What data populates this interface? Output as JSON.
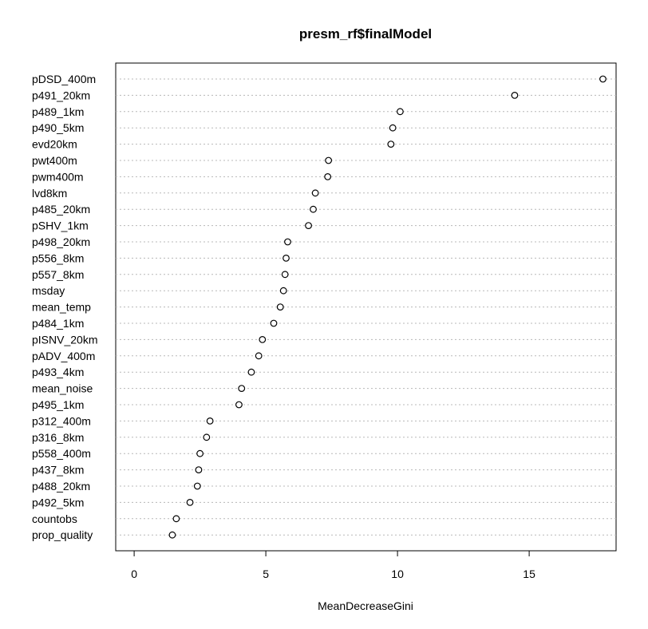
{
  "chart_data": {
    "type": "scatter",
    "title": "presm_rf$finalModel",
    "xlabel": "MeanDecreaseGini",
    "ylabel": "",
    "xlim": [
      -0.7,
      18.3
    ],
    "xticks": [
      0,
      5,
      10,
      15
    ],
    "grid": "horizontal dotted",
    "categories": [
      "pDSD_400m",
      "p491_20km",
      "p489_1km",
      "p490_5km",
      "evd20km",
      "pwt400m",
      "pwm400m",
      "lvd8km",
      "p485_20km",
      "pSHV_1km",
      "p498_20km",
      "p556_8km",
      "p557_8km",
      "msday",
      "mean_temp",
      "p484_1km",
      "pISNV_20km",
      "pADV_400m",
      "p493_4km",
      "mean_noise",
      "p495_1km",
      "p312_400m",
      "p316_8km",
      "p558_400m",
      "p437_8km",
      "p488_20km",
      "p492_5km",
      "countobs",
      "prop_quality"
    ],
    "values": [
      17.8,
      14.45,
      10.1,
      9.82,
      9.75,
      7.38,
      7.35,
      6.88,
      6.8,
      6.62,
      5.83,
      5.77,
      5.73,
      5.67,
      5.55,
      5.3,
      4.87,
      4.73,
      4.45,
      4.08,
      3.98,
      2.88,
      2.75,
      2.5,
      2.45,
      2.4,
      2.12,
      1.6,
      1.45
    ]
  }
}
